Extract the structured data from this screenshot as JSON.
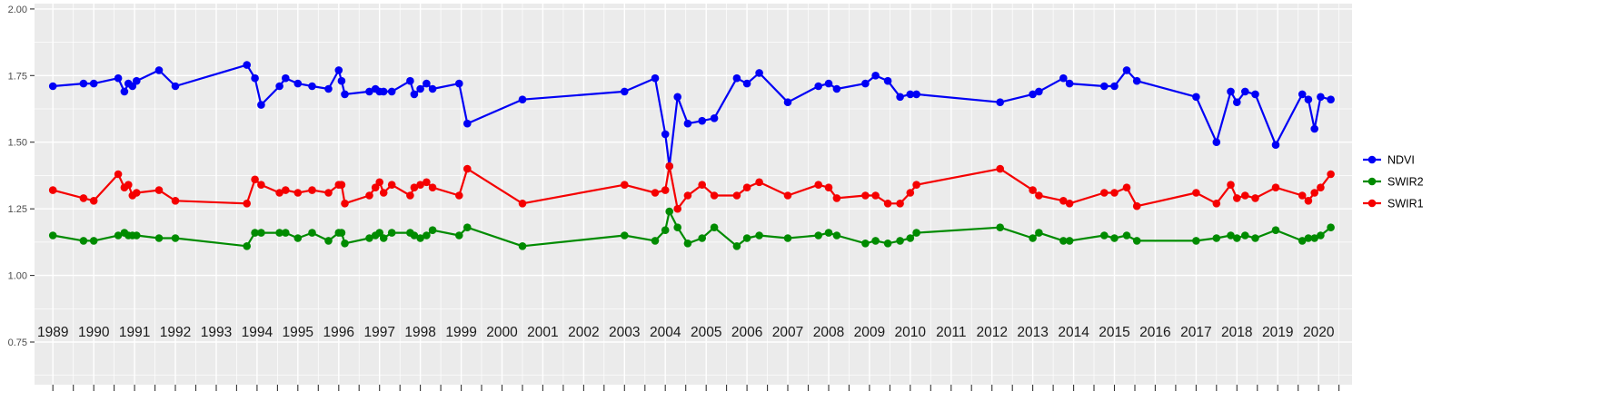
{
  "figure": {
    "background": "#FFFFFF",
    "panel_background": "#EBEBEB",
    "grid_color": "#FFFFFF",
    "tick_color": "#333333",
    "axis_text_color": "#4D4D4D",
    "x_label_color": "#1A1A1A",
    "legend_text_color": "#000000"
  },
  "chart_data": {
    "type": "line",
    "title": "",
    "xlabel": "",
    "ylabel": "",
    "grid": true,
    "legend_position": "right",
    "xlim": [
      1988.55,
      2020.82
    ],
    "ylim": [
      0.59,
      2.02
    ],
    "x_ticks": [
      1989,
      1990,
      1991,
      1992,
      1993,
      1994,
      1995,
      1996,
      1997,
      1998,
      1999,
      2000,
      2001,
      2002,
      2003,
      2004,
      2005,
      2006,
      2007,
      2008,
      2009,
      2010,
      2011,
      2012,
      2013,
      2014,
      2015,
      2016,
      2017,
      2018,
      2019,
      2020
    ],
    "y_ticks": [
      {
        "value": 2.0,
        "label": "2.00"
      },
      {
        "value": 1.75,
        "label": "1.75"
      },
      {
        "value": 1.5,
        "label": "1.50"
      },
      {
        "value": 1.25,
        "label": "1.25"
      },
      {
        "value": 1.0,
        "label": "1.00"
      },
      {
        "value": 0.75,
        "label": "0.75"
      }
    ],
    "y_minor": [
      1.875,
      1.625,
      1.375,
      1.125,
      0.875,
      0.625
    ],
    "x": [
      1989.0,
      1989.75,
      1990.0,
      1990.6,
      1990.75,
      1990.85,
      1990.95,
      1991.05,
      1991.6,
      1992.0,
      1993.75,
      1993.95,
      1994.1,
      1994.55,
      1994.7,
      1995.0,
      1995.35,
      1995.75,
      1996.0,
      1996.07,
      1996.15,
      1996.75,
      1996.9,
      1997.0,
      1997.1,
      1997.3,
      1997.75,
      1997.85,
      1998.0,
      1998.15,
      1998.3,
      1998.95,
      1999.15,
      2000.5,
      2003.0,
      2003.75,
      2004.0,
      2004.1,
      2004.3,
      2004.55,
      2004.9,
      2005.2,
      2005.75,
      2006.0,
      2006.3,
      2007.0,
      2007.75,
      2008.0,
      2008.2,
      2008.9,
      2009.15,
      2009.45,
      2009.75,
      2010.0,
      2010.15,
      2012.2,
      2013.0,
      2013.15,
      2013.75,
      2013.9,
      2014.75,
      2015.0,
      2015.3,
      2015.55,
      2017.0,
      2017.5,
      2017.85,
      2018.0,
      2018.2,
      2018.45,
      2018.95,
      2019.6,
      2019.75,
      2019.9,
      2020.05,
      2020.3
    ],
    "series": [
      {
        "name": "NDVI",
        "color": "#0000F5",
        "values": [
          1.71,
          1.72,
          1.72,
          1.74,
          1.69,
          1.72,
          1.71,
          1.73,
          1.77,
          1.71,
          1.79,
          1.74,
          1.64,
          1.71,
          1.74,
          1.72,
          1.71,
          1.7,
          1.77,
          1.73,
          1.68,
          1.69,
          1.7,
          1.69,
          1.69,
          1.69,
          1.73,
          1.68,
          1.7,
          1.72,
          1.7,
          1.72,
          1.57,
          1.66,
          1.69,
          1.74,
          1.53,
          1.41,
          1.67,
          1.57,
          1.58,
          1.59,
          1.74,
          1.72,
          1.76,
          1.65,
          1.71,
          1.72,
          1.7,
          1.72,
          1.75,
          1.73,
          1.67,
          1.68,
          1.68,
          1.65,
          1.68,
          1.69,
          1.74,
          1.72,
          1.71,
          1.71,
          1.77,
          1.73,
          1.67,
          1.5,
          1.69,
          1.65,
          1.69,
          1.68,
          1.49,
          1.68,
          1.66,
          1.55,
          1.67,
          1.66
        ]
      },
      {
        "name": "SWIR2",
        "color": "#008B00",
        "values": [
          1.15,
          1.13,
          1.13,
          1.15,
          1.16,
          1.15,
          1.15,
          1.15,
          1.14,
          1.14,
          1.11,
          1.16,
          1.16,
          1.16,
          1.16,
          1.14,
          1.16,
          1.13,
          1.16,
          1.16,
          1.12,
          1.14,
          1.15,
          1.16,
          1.14,
          1.16,
          1.16,
          1.15,
          1.14,
          1.15,
          1.17,
          1.15,
          1.18,
          1.11,
          1.15,
          1.13,
          1.17,
          1.24,
          1.18,
          1.12,
          1.14,
          1.18,
          1.11,
          1.14,
          1.15,
          1.14,
          1.15,
          1.16,
          1.15,
          1.12,
          1.13,
          1.12,
          1.13,
          1.14,
          1.16,
          1.18,
          1.14,
          1.16,
          1.13,
          1.13,
          1.15,
          1.14,
          1.15,
          1.13,
          1.13,
          1.14,
          1.15,
          1.14,
          1.15,
          1.14,
          1.17,
          1.13,
          1.14,
          1.14,
          1.15,
          1.18
        ]
      },
      {
        "name": "SWIR1",
        "color": "#F50000",
        "values": [
          1.32,
          1.29,
          1.28,
          1.38,
          1.33,
          1.34,
          1.3,
          1.31,
          1.32,
          1.28,
          1.27,
          1.36,
          1.34,
          1.31,
          1.32,
          1.31,
          1.32,
          1.31,
          1.34,
          1.34,
          1.27,
          1.3,
          1.33,
          1.35,
          1.31,
          1.34,
          1.3,
          1.33,
          1.34,
          1.35,
          1.33,
          1.3,
          1.4,
          1.27,
          1.34,
          1.31,
          1.32,
          1.41,
          1.25,
          1.3,
          1.34,
          1.3,
          1.3,
          1.33,
          1.35,
          1.3,
          1.34,
          1.33,
          1.29,
          1.3,
          1.3,
          1.27,
          1.27,
          1.31,
          1.34,
          1.4,
          1.32,
          1.3,
          1.28,
          1.27,
          1.31,
          1.31,
          1.33,
          1.26,
          1.31,
          1.27,
          1.34,
          1.29,
          1.3,
          1.29,
          1.33,
          1.3,
          1.28,
          1.31,
          1.33,
          1.38
        ]
      }
    ],
    "legend_order": [
      "NDVI",
      "SWIR2",
      "SWIR1"
    ]
  }
}
